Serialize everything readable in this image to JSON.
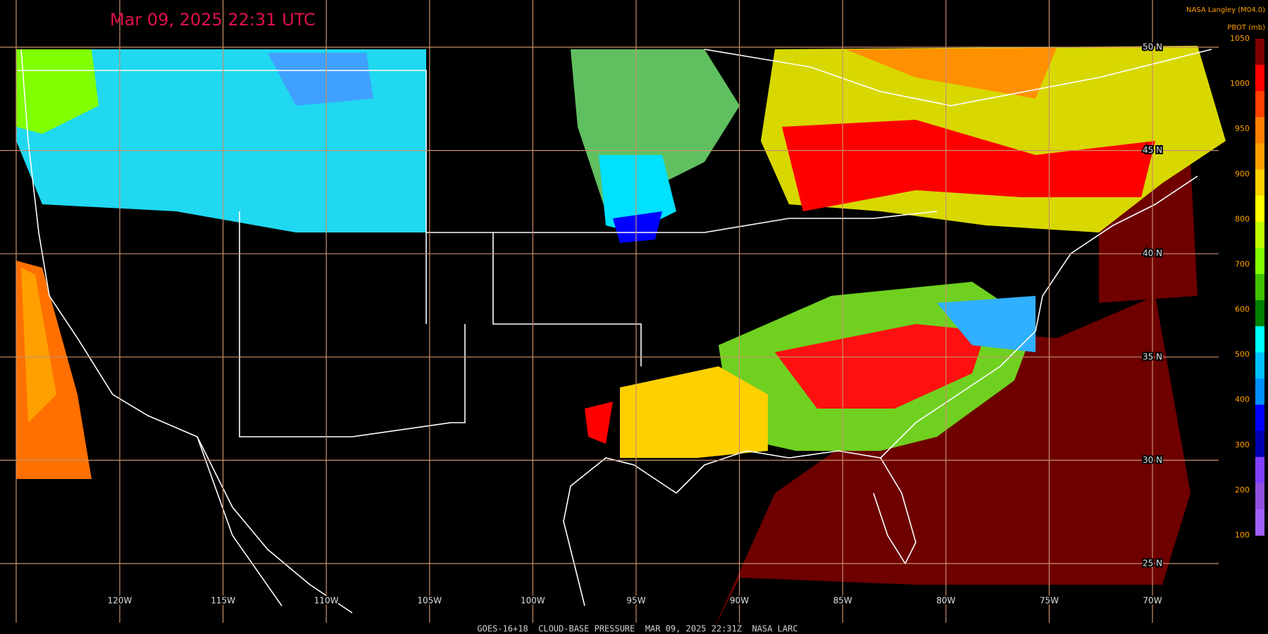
{
  "header": {
    "title": "Mar 09, 2025 22:31 UTC",
    "credit": "NASA Langley (M04.0)"
  },
  "colorbar": {
    "title": "PBOT (mb)",
    "ticks": [
      1050,
      1000,
      950,
      900,
      800,
      700,
      600,
      500,
      400,
      300,
      200,
      100
    ],
    "colors": [
      "#800000",
      "#ff0000",
      "#ff4000",
      "#ff8000",
      "#ffa000",
      "#ffd000",
      "#ffff00",
      "#c0ff00",
      "#80ff00",
      "#40c000",
      "#008000",
      "#00ffff",
      "#00c0ff",
      "#0090ff",
      "#0000ff",
      "#0000b0",
      "#8040ff",
      "#9050e0",
      "#a060ff"
    ]
  },
  "grid": {
    "longitudes": [
      "120W",
      "115W",
      "110W",
      "105W",
      "100W",
      "95W",
      "90W",
      "85W",
      "80W",
      "75W",
      "70W"
    ],
    "latitudes": [
      "50 N",
      "45 N",
      "40 N",
      "35 N",
      "30 N",
      "25 N"
    ]
  },
  "footer": "GOES-16+18  CLOUD-BASE PRESSURE  MAR 09, 2025 22:31Z  NASA LARC"
}
